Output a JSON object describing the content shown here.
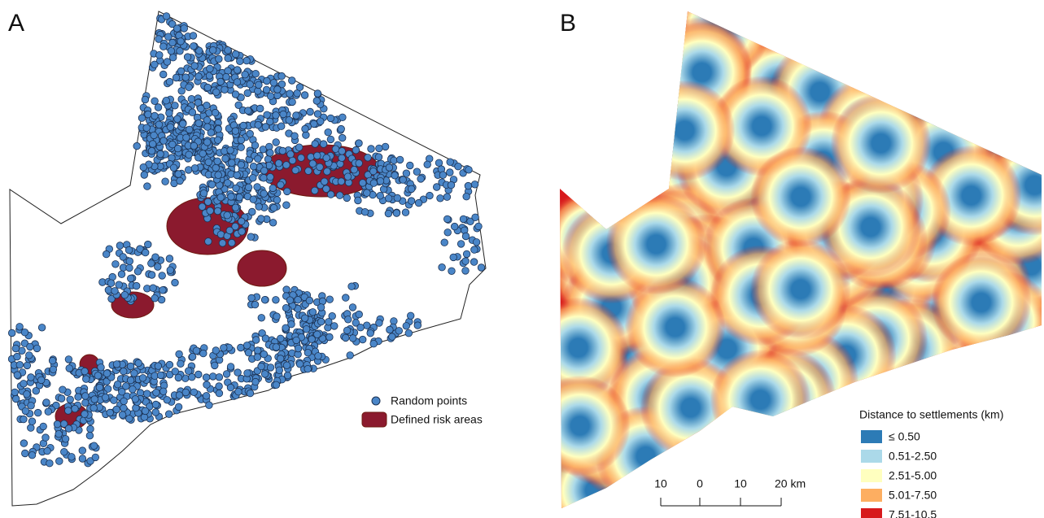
{
  "panels": [
    {
      "label": "A",
      "legend": {
        "items": [
          {
            "label": "Random points",
            "color": "#4a86c8"
          },
          {
            "label": "Defined risk areas",
            "color": "#8b1a2e"
          }
        ]
      }
    },
    {
      "label": "B",
      "legend": {
        "title": "Distance to settlements (km)",
        "items": [
          {
            "label": "≤ 0.50",
            "color": "#2c7bb6"
          },
          {
            "label": "0.51-2.50",
            "color": "#abd9e9"
          },
          {
            "label": "2.51-5.00",
            "color": "#ffffbf"
          },
          {
            "label": "5.01-7.50",
            "color": "#fdae61"
          },
          {
            "label": "7.51-10.5",
            "color": "#d7191c"
          }
        ]
      },
      "scale_bar": {
        "ticks": [
          "10",
          "0",
          "10",
          "20 km"
        ]
      }
    }
  ]
}
